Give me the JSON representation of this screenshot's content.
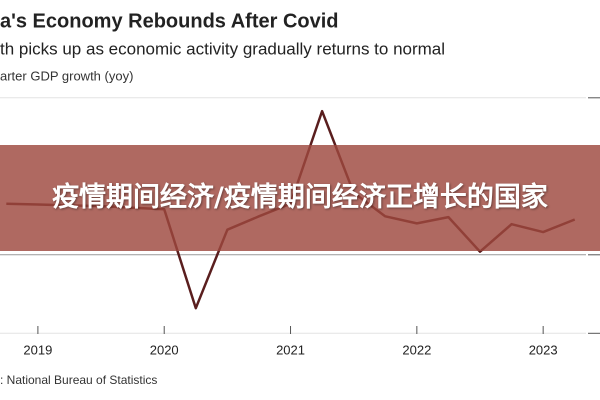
{
  "chart_data": {
    "type": "line",
    "title": "a's Economy Rebounds After Covid",
    "subtitle": "th picks up as economic activity gradually returns to normal",
    "y_label": "arter GDP growth (yoy)",
    "source": ": National Bureau of Statistics",
    "x": [
      2018.75,
      2019.0,
      2019.25,
      2019.5,
      2019.75,
      2020.0,
      2020.25,
      2020.5,
      2020.75,
      2021.0,
      2021.25,
      2021.5,
      2021.75,
      2022.0,
      2022.25,
      2022.5,
      2022.75,
      2023.0,
      2023.25
    ],
    "series": [
      {
        "name": "GDP growth",
        "color": "#5a1e1e",
        "values": [
          6.5,
          6.4,
          6.3,
          6.2,
          6.0,
          5.8,
          -6.8,
          3.2,
          4.9,
          6.5,
          18.3,
          7.9,
          4.9,
          4.0,
          4.8,
          0.4,
          3.9,
          2.9,
          4.5
        ]
      }
    ],
    "xlim": [
      2018.7,
      2023.45
    ],
    "xticks": [
      2019,
      2020,
      2021,
      2022,
      2023
    ],
    "ylim": [
      -12,
      28
    ],
    "yticks": [
      -10,
      0,
      20
    ],
    "grid": true
  },
  "banner": {
    "text": "疫情期间经济/疫情期间经济正增长的国家"
  }
}
